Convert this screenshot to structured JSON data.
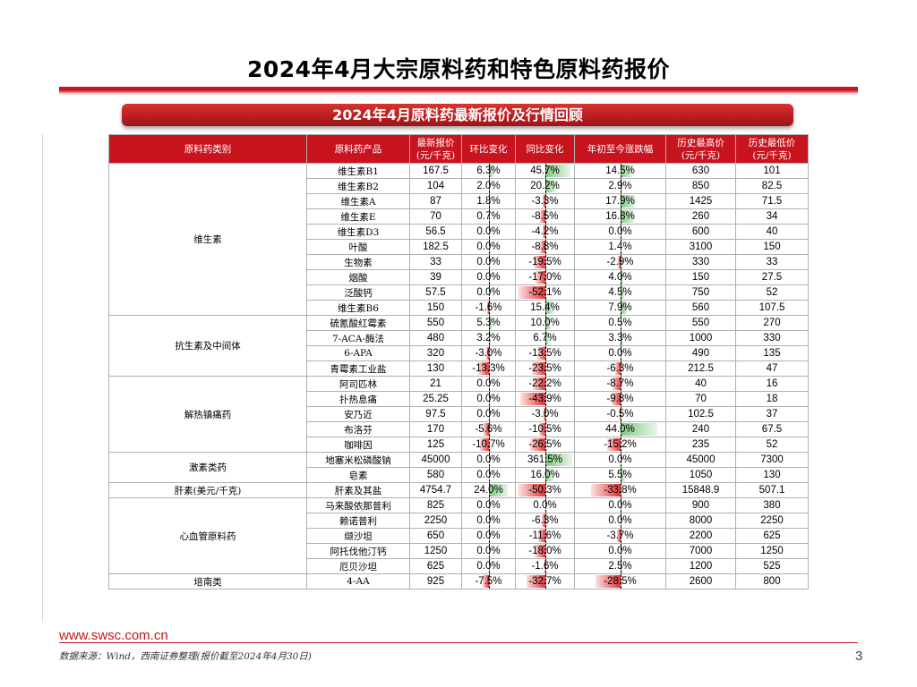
{
  "page": {
    "title": "2024年4月大宗原料药和特色原料药报价",
    "banner": "2024年4月原料药最新报价及行情回顾",
    "footer_url": "www.swsc.com.cn",
    "source_note": "数据来源：Wind，西南证券整理(报价截至2024年4月30日)",
    "page_number": "3"
  },
  "colors": {
    "brand_red": "#c8141e",
    "positive_bar": "#7fc97f",
    "negative_bar": "#e23232"
  },
  "table": {
    "headers": [
      "原料药类别",
      "原料药产品",
      "最新报价\n(元/千克)",
      "环比变化",
      "同比变化",
      "年初至今涨跌幅",
      "历史最高价\n(元/千克)",
      "历史最低价\n(元/千克)"
    ],
    "groups": [
      {
        "category": "维生素",
        "rows": [
          {
            "product": "维生素B1",
            "price": "167.5",
            "mom": "6.3%",
            "yoy": "45.7%",
            "ytd": "14.5%",
            "high": "630",
            "low": "101"
          },
          {
            "product": "维生素B2",
            "price": "104",
            "mom": "2.0%",
            "yoy": "20.2%",
            "ytd": "2.9%",
            "high": "850",
            "low": "82.5"
          },
          {
            "product": "维生素A",
            "price": "87",
            "mom": "1.8%",
            "yoy": "-3.3%",
            "ytd": "17.9%",
            "high": "1425",
            "low": "71.5"
          },
          {
            "product": "维生素E",
            "price": "70",
            "mom": "0.7%",
            "yoy": "-8.5%",
            "ytd": "16.8%",
            "high": "260",
            "low": "34"
          },
          {
            "product": "维生素D3",
            "price": "56.5",
            "mom": "0.0%",
            "yoy": "-4.2%",
            "ytd": "0.0%",
            "high": "600",
            "low": "40"
          },
          {
            "product": "叶酸",
            "price": "182.5",
            "mom": "0.0%",
            "yoy": "-8.8%",
            "ytd": "1.4%",
            "high": "3100",
            "low": "150"
          },
          {
            "product": "生物素",
            "price": "33",
            "mom": "0.0%",
            "yoy": "-19.5%",
            "ytd": "-2.9%",
            "high": "330",
            "low": "33"
          },
          {
            "product": "烟酸",
            "price": "39",
            "mom": "0.0%",
            "yoy": "-17.0%",
            "ytd": "4.0%",
            "high": "150",
            "low": "27.5"
          },
          {
            "product": "泛酸钙",
            "price": "57.5",
            "mom": "0.0%",
            "yoy": "-52.1%",
            "ytd": "4.5%",
            "high": "750",
            "low": "52"
          },
          {
            "product": "维生素B6",
            "price": "150",
            "mom": "-1.6%",
            "yoy": "15.4%",
            "ytd": "7.9%",
            "high": "560",
            "low": "107.5"
          }
        ]
      },
      {
        "category": "抗生素及中间体",
        "rows": [
          {
            "product": "硫氰酸红霉素",
            "price": "550",
            "mom": "5.3%",
            "yoy": "10.0%",
            "ytd": "0.5%",
            "high": "550",
            "low": "270"
          },
          {
            "product": "7-ACA-酶法",
            "price": "480",
            "mom": "3.2%",
            "yoy": "6.7%",
            "ytd": "3.3%",
            "high": "1000",
            "low": "330"
          },
          {
            "product": "6-APA",
            "price": "320",
            "mom": "-3.0%",
            "yoy": "-13.5%",
            "ytd": "0.0%",
            "high": "490",
            "low": "135"
          },
          {
            "product": "青霉素工业盐",
            "price": "130",
            "mom": "-13.3%",
            "yoy": "-23.5%",
            "ytd": "-6.3%",
            "high": "212.5",
            "low": "47"
          }
        ]
      },
      {
        "category": "解热镇痛药",
        "rows": [
          {
            "product": "阿司匹林",
            "price": "21",
            "mom": "0.0%",
            "yoy": "-22.2%",
            "ytd": "-8.7%",
            "high": "40",
            "low": "16"
          },
          {
            "product": "扑热息痛",
            "price": "25.25",
            "mom": "0.0%",
            "yoy": "-43.9%",
            "ytd": "-9.8%",
            "high": "70",
            "low": "18"
          },
          {
            "product": "安乃近",
            "price": "97.5",
            "mom": "0.0%",
            "yoy": "-3.0%",
            "ytd": "-0.5%",
            "high": "102.5",
            "low": "37"
          },
          {
            "product": "布洛芬",
            "price": "170",
            "mom": "-5.6%",
            "yoy": "-10.5%",
            "ytd": "44.0%",
            "high": "240",
            "low": "67.5"
          },
          {
            "product": "咖啡因",
            "price": "125",
            "mom": "-10.7%",
            "yoy": "-26.5%",
            "ytd": "-15.2%",
            "high": "235",
            "low": "52"
          }
        ]
      },
      {
        "category": "激素类药",
        "rows": [
          {
            "product": "地塞米松磷酸钠",
            "price": "45000",
            "mom": "0.0%",
            "yoy": "361.5%",
            "ytd": "0.0%",
            "high": "45000",
            "low": "7300"
          },
          {
            "product": "皂素",
            "price": "580",
            "mom": "0.0%",
            "yoy": "16.0%",
            "ytd": "5.5%",
            "high": "1050",
            "low": "130"
          }
        ]
      },
      {
        "category": "肝素(美元/千克)",
        "rows": [
          {
            "product": "肝素及其盐",
            "price": "4754.7",
            "mom": "24.0%",
            "yoy": "-50.3%",
            "ytd": "-33.8%",
            "high": "15848.9",
            "low": "507.1"
          }
        ]
      },
      {
        "category": "心血管原料药",
        "rows": [
          {
            "product": "马来酸依那普利",
            "price": "825",
            "mom": "0.0%",
            "yoy": "0.0%",
            "ytd": "0.0%",
            "high": "900",
            "low": "380"
          },
          {
            "product": "赖诺普利",
            "price": "2250",
            "mom": "0.0%",
            "yoy": "-6.3%",
            "ytd": "0.0%",
            "high": "8000",
            "low": "2250"
          },
          {
            "product": "缬沙坦",
            "price": "650",
            "mom": "0.0%",
            "yoy": "-11.6%",
            "ytd": "-3.7%",
            "high": "2200",
            "low": "625"
          },
          {
            "product": "阿托伐他汀钙",
            "price": "1250",
            "mom": "0.0%",
            "yoy": "-18.0%",
            "ytd": "0.0%",
            "high": "7000",
            "low": "1250"
          },
          {
            "product": "厄贝沙坦",
            "price": "625",
            "mom": "0.0%",
            "yoy": "-1.6%",
            "ytd": "2.5%",
            "high": "1200",
            "low": "525"
          }
        ]
      },
      {
        "category": "培南类",
        "rows": [
          {
            "product": "4-AA",
            "price": "925",
            "mom": "-7.5%",
            "yoy": "-32.7%",
            "ytd": "-28.5%",
            "high": "2600",
            "low": "800"
          }
        ]
      }
    ]
  }
}
